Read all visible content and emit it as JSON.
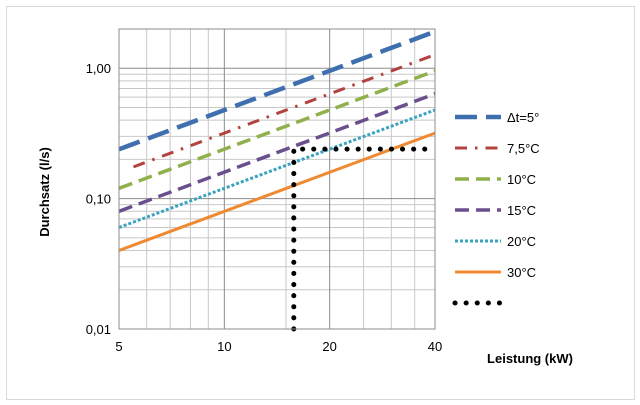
{
  "chart_data": {
    "type": "line",
    "title": "",
    "xlabel": "Leistung (kW)",
    "ylabel": "Durchsatz (l/s)",
    "x_scale": "log",
    "y_scale": "log",
    "xlim": [
      5,
      40
    ],
    "ylim": [
      0.01,
      2
    ],
    "x_ticks": [
      5,
      10,
      20,
      40
    ],
    "x_tick_labels": [
      "5",
      "10",
      "20",
      "40"
    ],
    "y_ticks": [
      0.01,
      0.1,
      1
    ],
    "y_tick_labels": [
      "0,01",
      "0,10",
      "1,00"
    ],
    "grid": true,
    "legend_position": "right",
    "series": [
      {
        "name": "Δt=5°",
        "color": "#3f6faf",
        "style": "long-dash",
        "x": [
          5,
          40
        ],
        "y": [
          0.239,
          1.91
        ]
      },
      {
        "name": "7,5°C",
        "color": "#b3433f",
        "style": "dash-dot",
        "x": [
          5.5,
          40
        ],
        "y": [
          0.175,
          1.27
        ]
      },
      {
        "name": "10°C",
        "color": "#8fb04a",
        "style": "dash",
        "x": [
          5,
          40
        ],
        "y": [
          0.12,
          0.955
        ]
      },
      {
        "name": "15°C",
        "color": "#6a4f8e",
        "style": "dash",
        "x": [
          5,
          40
        ],
        "y": [
          0.08,
          0.637
        ]
      },
      {
        "name": "20°C",
        "color": "#3aa3c0",
        "style": "dot",
        "x": [
          5,
          40
        ],
        "y": [
          0.06,
          0.478
        ]
      },
      {
        "name": "30°C",
        "color": "#ef8a33",
        "style": "solid",
        "x": [
          5,
          40
        ],
        "y": [
          0.04,
          0.318
        ]
      },
      {
        "name": "",
        "color": "#000000",
        "style": "round-dot",
        "x": [
          15.8,
          15.8,
          40
        ],
        "y": [
          0.01,
          0.24,
          0.24
        ]
      }
    ]
  }
}
